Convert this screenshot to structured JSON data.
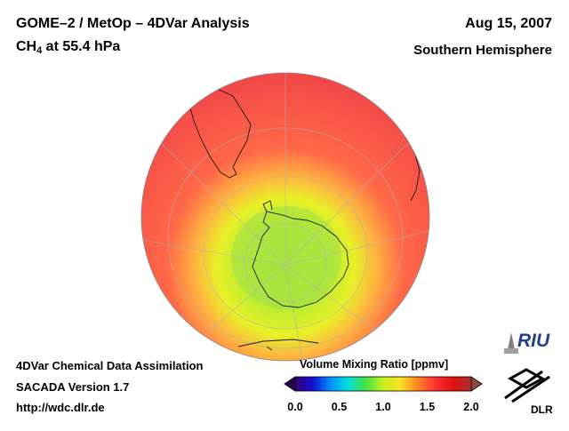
{
  "header": {
    "title": "GOME–2 / MetOp – 4DVar Analysis",
    "species_main": "CH",
    "species_sub": "4",
    "species_rest": " at 55.4 hPa",
    "date": "Aug 15, 2007",
    "hemisphere": "Southern Hemisphere"
  },
  "footer": {
    "line1": "4DVar Chemical Data Assimilation",
    "line2": "SACADA Version 1.7",
    "line3": "http://wdc.dlr.de"
  },
  "colorbar": {
    "title": "Volume Mixing Ratio [ppmv]",
    "ticks": [
      "0.0",
      "0.5",
      "1.0",
      "1.5",
      "2.0"
    ],
    "min": 0.0,
    "max": 2.0,
    "colors": [
      "#3a0070",
      "#1010d0",
      "#0090ff",
      "#00e0e0",
      "#40e040",
      "#c8f020",
      "#f8e020",
      "#ff8020",
      "#ff3030",
      "#e01010",
      "#b03030"
    ]
  },
  "map": {
    "projection": "orthographic, south polar view",
    "pole_value": 1.05,
    "outer_value": 1.85
  },
  "logos": {
    "riu": "RIU",
    "dlr": "DLR"
  }
}
